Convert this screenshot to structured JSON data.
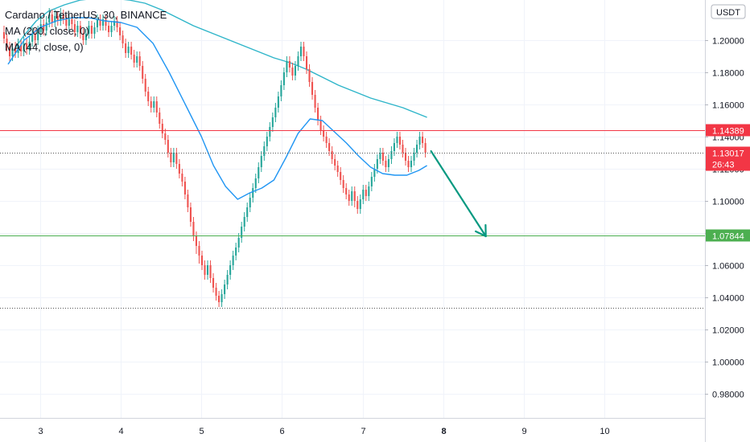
{
  "chart_data": {
    "type": "candlestick",
    "title": "Cardano / TetherUS, 30, BINANCE",
    "indicators": [
      {
        "label": "MA (200, close, 0)",
        "color": "#2eb5c9"
      },
      {
        "label": "MA (44, close, 0)",
        "color": "#2196f3"
      }
    ],
    "currency": "USDT",
    "ylim": [
      0.965,
      1.225
    ],
    "y_ticks": [
      "1.20000",
      "1.18000",
      "1.16000",
      "1.14000",
      "1.12000",
      "1.10000",
      "1.08000",
      "1.06000",
      "1.04000",
      "1.02000",
      "1.00000",
      "0.98000"
    ],
    "xlim": [
      2.5,
      11.25
    ],
    "x_ticks": [
      {
        "x": 3,
        "label": "3"
      },
      {
        "x": 4,
        "label": "4"
      },
      {
        "x": 5,
        "label": "5"
      },
      {
        "x": 6,
        "label": "6"
      },
      {
        "x": 7,
        "label": "7"
      },
      {
        "x": 8,
        "label": "8",
        "bold": true
      },
      {
        "x": 9,
        "label": "9"
      },
      {
        "x": 10,
        "label": "10"
      }
    ],
    "price_levels": [
      {
        "value": 1.14389,
        "label": "1.14389",
        "color": "#f23645",
        "style": "solid"
      },
      {
        "value": 1.07844,
        "label": "1.07844",
        "color": "#4caf50",
        "style": "solid"
      },
      {
        "value": 1.13017,
        "label": "1.13017",
        "sublabel": "26:43",
        "color": "#f23645",
        "style": "dotted",
        "line_color": "#555555"
      },
      {
        "value": 1.0335,
        "label": "",
        "color": "#555555",
        "style": "dotted"
      }
    ],
    "ma200": {
      "x": [
        2.7,
        2.8,
        2.95,
        3.1,
        3.3,
        3.5,
        3.7,
        3.9,
        4.1,
        4.3,
        4.5,
        4.7,
        4.9,
        5.1,
        5.3,
        5.5,
        5.7,
        5.9,
        6.1,
        6.3,
        6.5,
        6.7,
        6.9,
        7.1,
        7.3,
        7.5,
        7.65,
        7.8
      ],
      "y": [
        1.196,
        1.203,
        1.212,
        1.218,
        1.222,
        1.225,
        1.226,
        1.226,
        1.225,
        1.223,
        1.219,
        1.214,
        1.209,
        1.205,
        1.201,
        1.197,
        1.193,
        1.189,
        1.186,
        1.182,
        1.177,
        1.172,
        1.168,
        1.164,
        1.161,
        1.158,
        1.155,
        1.152
      ]
    },
    "ma44": {
      "x": [
        2.6,
        2.8,
        3.0,
        3.2,
        3.4,
        3.6,
        3.8,
        4.0,
        4.2,
        4.4,
        4.6,
        4.8,
        5.0,
        5.15,
        5.3,
        5.45,
        5.6,
        5.75,
        5.9,
        6.05,
        6.2,
        6.35,
        6.5,
        6.65,
        6.8,
        6.95,
        7.1,
        7.25,
        7.4,
        7.55,
        7.7,
        7.8
      ],
      "y": [
        1.185,
        1.2,
        1.208,
        1.212,
        1.214,
        1.214,
        1.212,
        1.211,
        1.208,
        1.198,
        1.18,
        1.16,
        1.14,
        1.122,
        1.109,
        1.101,
        1.105,
        1.108,
        1.113,
        1.127,
        1.142,
        1.151,
        1.15,
        1.143,
        1.136,
        1.128,
        1.121,
        1.117,
        1.116,
        1.116,
        1.119,
        1.122
      ]
    },
    "candles": [
      [
        1.205,
        1.201,
        1.209,
        1.198
      ],
      [
        1.201,
        1.196,
        1.204,
        1.193
      ],
      [
        1.196,
        1.19,
        1.199,
        1.187
      ],
      [
        1.19,
        1.195,
        1.198,
        1.187
      ],
      [
        1.195,
        1.192,
        1.199,
        1.189
      ],
      [
        1.192,
        1.197,
        1.201,
        1.189
      ],
      [
        1.197,
        1.193,
        1.2,
        1.19
      ],
      [
        1.193,
        1.198,
        1.202,
        1.19
      ],
      [
        1.198,
        1.194,
        1.201,
        1.191
      ],
      [
        1.194,
        1.199,
        1.203,
        1.191
      ],
      [
        1.199,
        1.204,
        1.208,
        1.196
      ],
      [
        1.204,
        1.2,
        1.207,
        1.197
      ],
      [
        1.2,
        1.205,
        1.209,
        1.197
      ],
      [
        1.205,
        1.21,
        1.214,
        1.202
      ],
      [
        1.21,
        1.206,
        1.213,
        1.203
      ],
      [
        1.206,
        1.211,
        1.215,
        1.203
      ],
      [
        1.211,
        1.216,
        1.22,
        1.208
      ],
      [
        1.216,
        1.211,
        1.219,
        1.208
      ],
      [
        1.211,
        1.215,
        1.219,
        1.208
      ],
      [
        1.215,
        1.212,
        1.218,
        1.209
      ],
      [
        1.212,
        1.216,
        1.22,
        1.209
      ],
      [
        1.216,
        1.213,
        1.219,
        1.21
      ],
      [
        1.213,
        1.209,
        1.216,
        1.206
      ],
      [
        1.209,
        1.213,
        1.216,
        1.206
      ],
      [
        1.213,
        1.21,
        1.216,
        1.207
      ],
      [
        1.21,
        1.205,
        1.213,
        1.202
      ],
      [
        1.205,
        1.209,
        1.212,
        1.202
      ],
      [
        1.209,
        1.204,
        1.212,
        1.201
      ],
      [
        1.204,
        1.2,
        1.207,
        1.197
      ],
      [
        1.2,
        1.204,
        1.207,
        1.197
      ],
      [
        1.204,
        1.209,
        1.212,
        1.201
      ],
      [
        1.209,
        1.204,
        1.212,
        1.201
      ],
      [
        1.204,
        1.208,
        1.211,
        1.201
      ],
      [
        1.208,
        1.213,
        1.216,
        1.205
      ],
      [
        1.213,
        1.209,
        1.216,
        1.206
      ],
      [
        1.209,
        1.213,
        1.216,
        1.206
      ],
      [
        1.213,
        1.209,
        1.216,
        1.206
      ],
      [
        1.209,
        1.205,
        1.212,
        1.202
      ],
      [
        1.205,
        1.209,
        1.212,
        1.202
      ],
      [
        1.209,
        1.212,
        1.215,
        1.206
      ],
      [
        1.212,
        1.208,
        1.215,
        1.205
      ],
      [
        1.208,
        1.203,
        1.211,
        1.2
      ],
      [
        1.203,
        1.198,
        1.206,
        1.195
      ],
      [
        1.198,
        1.192,
        1.201,
        1.189
      ],
      [
        1.192,
        1.196,
        1.199,
        1.189
      ],
      [
        1.196,
        1.191,
        1.199,
        1.188
      ],
      [
        1.191,
        1.186,
        1.194,
        1.183
      ],
      [
        1.186,
        1.19,
        1.193,
        1.183
      ],
      [
        1.19,
        1.184,
        1.193,
        1.181
      ],
      [
        1.184,
        1.176,
        1.187,
        1.173
      ],
      [
        1.176,
        1.168,
        1.179,
        1.165
      ],
      [
        1.168,
        1.162,
        1.171,
        1.159
      ],
      [
        1.162,
        1.158,
        1.165,
        1.155
      ],
      [
        1.158,
        1.162,
        1.165,
        1.155
      ],
      [
        1.162,
        1.155,
        1.165,
        1.152
      ],
      [
        1.155,
        1.148,
        1.158,
        1.145
      ],
      [
        1.148,
        1.142,
        1.151,
        1.139
      ],
      [
        1.142,
        1.138,
        1.145,
        1.135
      ],
      [
        1.138,
        1.13,
        1.141,
        1.127
      ],
      [
        1.13,
        1.124,
        1.133,
        1.121
      ],
      [
        1.124,
        1.13,
        1.133,
        1.121
      ],
      [
        1.13,
        1.123,
        1.133,
        1.12
      ],
      [
        1.123,
        1.117,
        1.126,
        1.114
      ],
      [
        1.117,
        1.112,
        1.12,
        1.109
      ],
      [
        1.112,
        1.104,
        1.115,
        1.101
      ],
      [
        1.104,
        1.096,
        1.107,
        1.093
      ],
      [
        1.096,
        1.087,
        1.099,
        1.084
      ],
      [
        1.087,
        1.078,
        1.09,
        1.075
      ],
      [
        1.078,
        1.072,
        1.081,
        1.067
      ],
      [
        1.072,
        1.066,
        1.075,
        1.061
      ],
      [
        1.066,
        1.06,
        1.069,
        1.057
      ],
      [
        1.06,
        1.054,
        1.063,
        1.051
      ],
      [
        1.054,
        1.06,
        1.063,
        1.051
      ],
      [
        1.06,
        1.052,
        1.063,
        1.049
      ],
      [
        1.052,
        1.046,
        1.055,
        1.043
      ],
      [
        1.046,
        1.041,
        1.049,
        1.038
      ],
      [
        1.041,
        1.037,
        1.044,
        1.034
      ],
      [
        1.037,
        1.042,
        1.045,
        1.034
      ],
      [
        1.042,
        1.048,
        1.051,
        1.039
      ],
      [
        1.048,
        1.054,
        1.057,
        1.045
      ],
      [
        1.054,
        1.06,
        1.063,
        1.051
      ],
      [
        1.06,
        1.066,
        1.069,
        1.057
      ],
      [
        1.066,
        1.071,
        1.074,
        1.063
      ],
      [
        1.071,
        1.077,
        1.08,
        1.068
      ],
      [
        1.077,
        1.084,
        1.087,
        1.074
      ],
      [
        1.084,
        1.09,
        1.093,
        1.081
      ],
      [
        1.09,
        1.096,
        1.099,
        1.087
      ],
      [
        1.096,
        1.102,
        1.105,
        1.093
      ],
      [
        1.102,
        1.108,
        1.111,
        1.099
      ],
      [
        1.108,
        1.114,
        1.117,
        1.105
      ],
      [
        1.114,
        1.121,
        1.124,
        1.111
      ],
      [
        1.121,
        1.128,
        1.131,
        1.118
      ],
      [
        1.128,
        1.134,
        1.137,
        1.125
      ],
      [
        1.134,
        1.14,
        1.143,
        1.131
      ],
      [
        1.14,
        1.146,
        1.149,
        1.137
      ],
      [
        1.146,
        1.152,
        1.155,
        1.143
      ],
      [
        1.152,
        1.158,
        1.161,
        1.149
      ],
      [
        1.158,
        1.165,
        1.168,
        1.155
      ],
      [
        1.165,
        1.172,
        1.175,
        1.162
      ],
      [
        1.172,
        1.18,
        1.183,
        1.169
      ],
      [
        1.18,
        1.187,
        1.19,
        1.177
      ],
      [
        1.187,
        1.183,
        1.19,
        1.18
      ],
      [
        1.183,
        1.178,
        1.186,
        1.175
      ],
      [
        1.178,
        1.184,
        1.187,
        1.175
      ],
      [
        1.184,
        1.19,
        1.193,
        1.181
      ],
      [
        1.19,
        1.196,
        1.199,
        1.187
      ],
      [
        1.196,
        1.19,
        1.199,
        1.187
      ],
      [
        1.19,
        1.182,
        1.193,
        1.179
      ],
      [
        1.182,
        1.174,
        1.185,
        1.171
      ],
      [
        1.174,
        1.166,
        1.177,
        1.163
      ],
      [
        1.166,
        1.158,
        1.169,
        1.155
      ],
      [
        1.158,
        1.15,
        1.161,
        1.147
      ],
      [
        1.15,
        1.144,
        1.153,
        1.141
      ],
      [
        1.144,
        1.14,
        1.147,
        1.137
      ],
      [
        1.14,
        1.136,
        1.143,
        1.133
      ],
      [
        1.136,
        1.131,
        1.139,
        1.128
      ],
      [
        1.131,
        1.126,
        1.134,
        1.123
      ],
      [
        1.126,
        1.122,
        1.129,
        1.119
      ],
      [
        1.122,
        1.118,
        1.125,
        1.115
      ],
      [
        1.118,
        1.113,
        1.121,
        1.11
      ],
      [
        1.113,
        1.108,
        1.116,
        1.105
      ],
      [
        1.108,
        1.104,
        1.111,
        1.101
      ],
      [
        1.104,
        1.1,
        1.107,
        1.097
      ],
      [
        1.1,
        1.106,
        1.109,
        1.097
      ],
      [
        1.106,
        1.1,
        1.109,
        1.096
      ],
      [
        1.1,
        1.095,
        1.103,
        1.092
      ],
      [
        1.095,
        1.101,
        1.104,
        1.092
      ],
      [
        1.101,
        1.107,
        1.11,
        1.098
      ],
      [
        1.107,
        1.103,
        1.11,
        1.1
      ],
      [
        1.103,
        1.109,
        1.112,
        1.1
      ],
      [
        1.109,
        1.115,
        1.118,
        1.106
      ],
      [
        1.115,
        1.12,
        1.123,
        1.112
      ],
      [
        1.12,
        1.126,
        1.129,
        1.117
      ],
      [
        1.126,
        1.13,
        1.133,
        1.123
      ],
      [
        1.13,
        1.125,
        1.133,
        1.122
      ],
      [
        1.125,
        1.121,
        1.128,
        1.118
      ],
      [
        1.121,
        1.126,
        1.129,
        1.118
      ],
      [
        1.126,
        1.131,
        1.134,
        1.123
      ],
      [
        1.131,
        1.136,
        1.139,
        1.128
      ],
      [
        1.136,
        1.14,
        1.143,
        1.133
      ],
      [
        1.14,
        1.135,
        1.143,
        1.132
      ],
      [
        1.135,
        1.13,
        1.138,
        1.127
      ],
      [
        1.13,
        1.125,
        1.133,
        1.122
      ],
      [
        1.125,
        1.121,
        1.128,
        1.118
      ],
      [
        1.121,
        1.125,
        1.128,
        1.118
      ],
      [
        1.125,
        1.13,
        1.133,
        1.122
      ],
      [
        1.13,
        1.135,
        1.138,
        1.127
      ],
      [
        1.135,
        1.14,
        1.143,
        1.132
      ],
      [
        1.14,
        1.136,
        1.143,
        1.133
      ],
      [
        1.136,
        1.13,
        1.139,
        1.127
      ]
    ]
  }
}
